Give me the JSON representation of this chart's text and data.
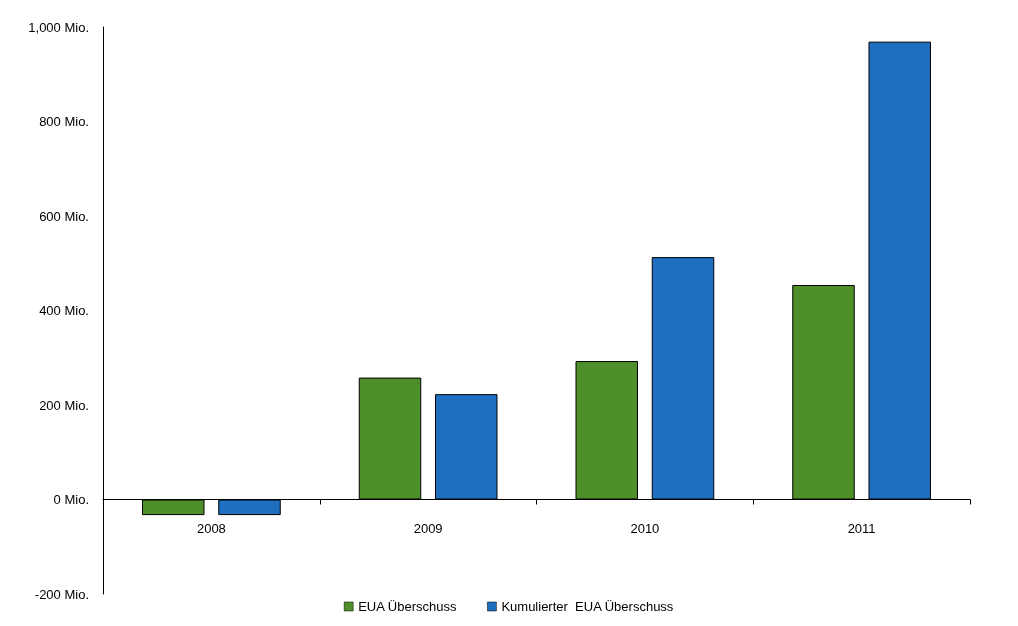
{
  "chart_data": {
    "type": "bar",
    "categories": [
      "2008",
      "2009",
      "2010",
      "2011"
    ],
    "series": [
      {
        "name": "EUA Überschuss",
        "color": "#4e8f2a",
        "values": [
          -33,
          258,
          293,
          454
        ]
      },
      {
        "name": "Kumulierter  EUA Überschuss",
        "color": "#1f6fc1",
        "values": [
          -33,
          223,
          513,
          969
        ]
      }
    ],
    "ylim": [
      -200,
      1000
    ],
    "yticks": [
      {
        "value": -200,
        "label": "-200 Mio."
      },
      {
        "value": 0,
        "label": "0 Mio."
      },
      {
        "value": 200,
        "label": "200 Mio."
      },
      {
        "value": 400,
        "label": "400 Mio."
      },
      {
        "value": 600,
        "label": "600 Mio."
      },
      {
        "value": 800,
        "label": "800 Mio."
      },
      {
        "value": 1000,
        "label": "1,000 Mio."
      }
    ],
    "grid": false,
    "legend": "bottom"
  }
}
